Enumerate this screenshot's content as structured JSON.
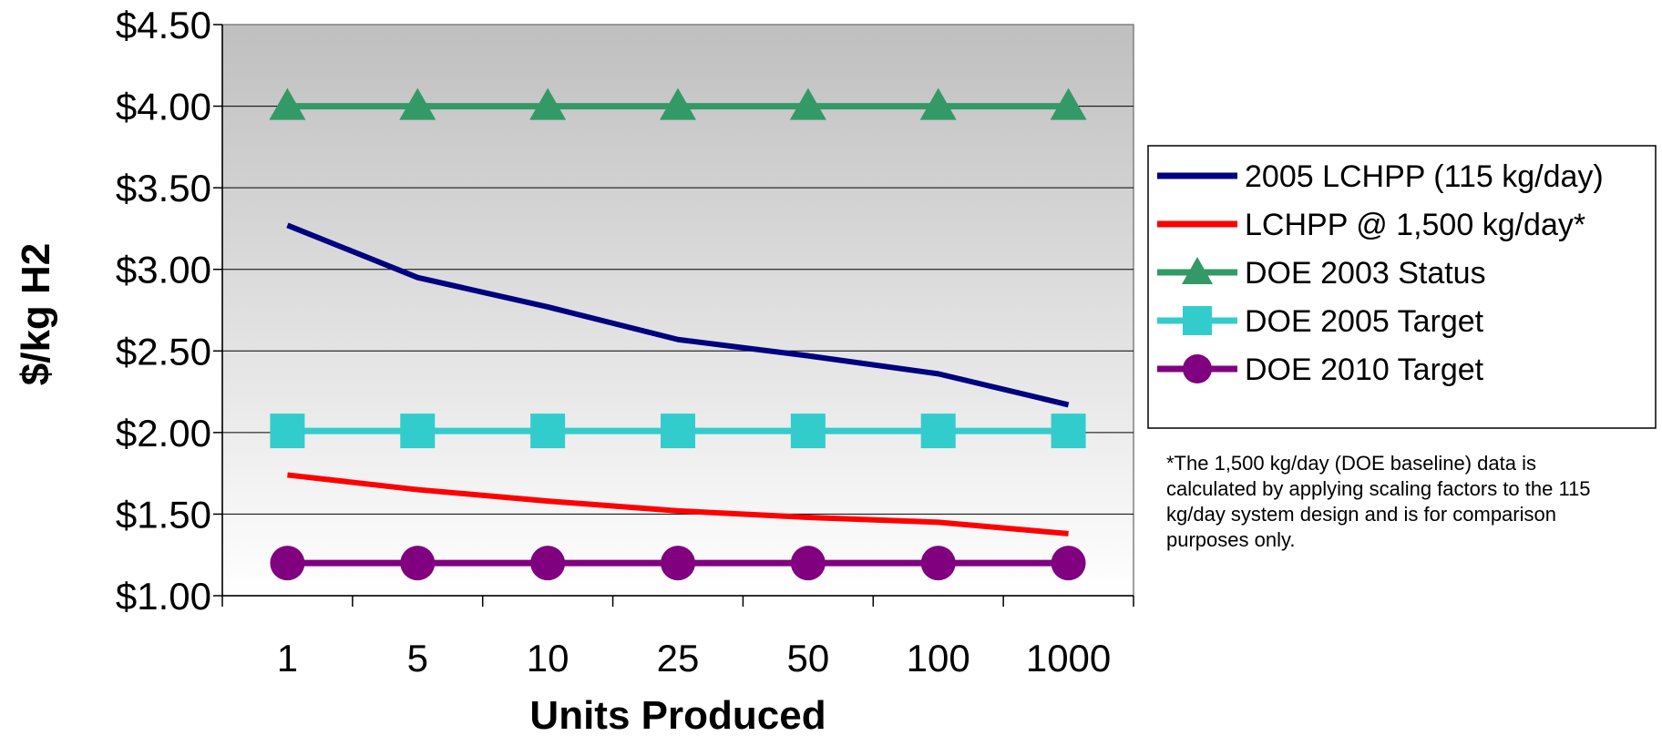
{
  "chart_data": {
    "type": "line",
    "title": "",
    "xlabel": "Units Produced",
    "ylabel": "$/kg H2",
    "categories": [
      "1",
      "5",
      "10",
      "25",
      "50",
      "100",
      "1000"
    ],
    "y_tick_labels": [
      "$1.00",
      "$1.50",
      "$2.00",
      "$2.50",
      "$3.00",
      "$3.50",
      "$4.00",
      "$4.50"
    ],
    "y_ticks": [
      1.0,
      1.5,
      2.0,
      2.5,
      3.0,
      3.5,
      4.0,
      4.5
    ],
    "ylim": [
      1.0,
      4.5
    ],
    "grid": true,
    "legend_position": "right",
    "series": [
      {
        "name": "2005 LCHPP (115 kg/day)",
        "values": [
          3.27,
          2.95,
          2.77,
          2.57,
          2.47,
          2.36,
          2.17
        ],
        "color": "#000080",
        "marker": "none"
      },
      {
        "name": "LCHPP @ 1,500 kg/day*",
        "values": [
          1.74,
          1.65,
          1.58,
          1.52,
          1.48,
          1.45,
          1.38
        ],
        "color": "#ff0000",
        "marker": "none"
      },
      {
        "name": "DOE 2003 Status",
        "values": [
          4.0,
          4.0,
          4.0,
          4.0,
          4.0,
          4.0,
          4.0
        ],
        "color": "#339966",
        "marker": "triangle"
      },
      {
        "name": "DOE 2005 Target",
        "values": [
          2.01,
          2.01,
          2.01,
          2.01,
          2.01,
          2.01,
          2.01
        ],
        "color": "#33cccc",
        "marker": "square"
      },
      {
        "name": "DOE 2010 Target",
        "values": [
          1.2,
          1.2,
          1.2,
          1.2,
          1.2,
          1.2,
          1.2
        ],
        "color": "#800080",
        "marker": "circle"
      }
    ]
  },
  "footnote": "*The 1,500 kg/day (DOE baseline) data is calculated by applying scaling factors to the 115 kg/day system design and is for comparison purposes only."
}
